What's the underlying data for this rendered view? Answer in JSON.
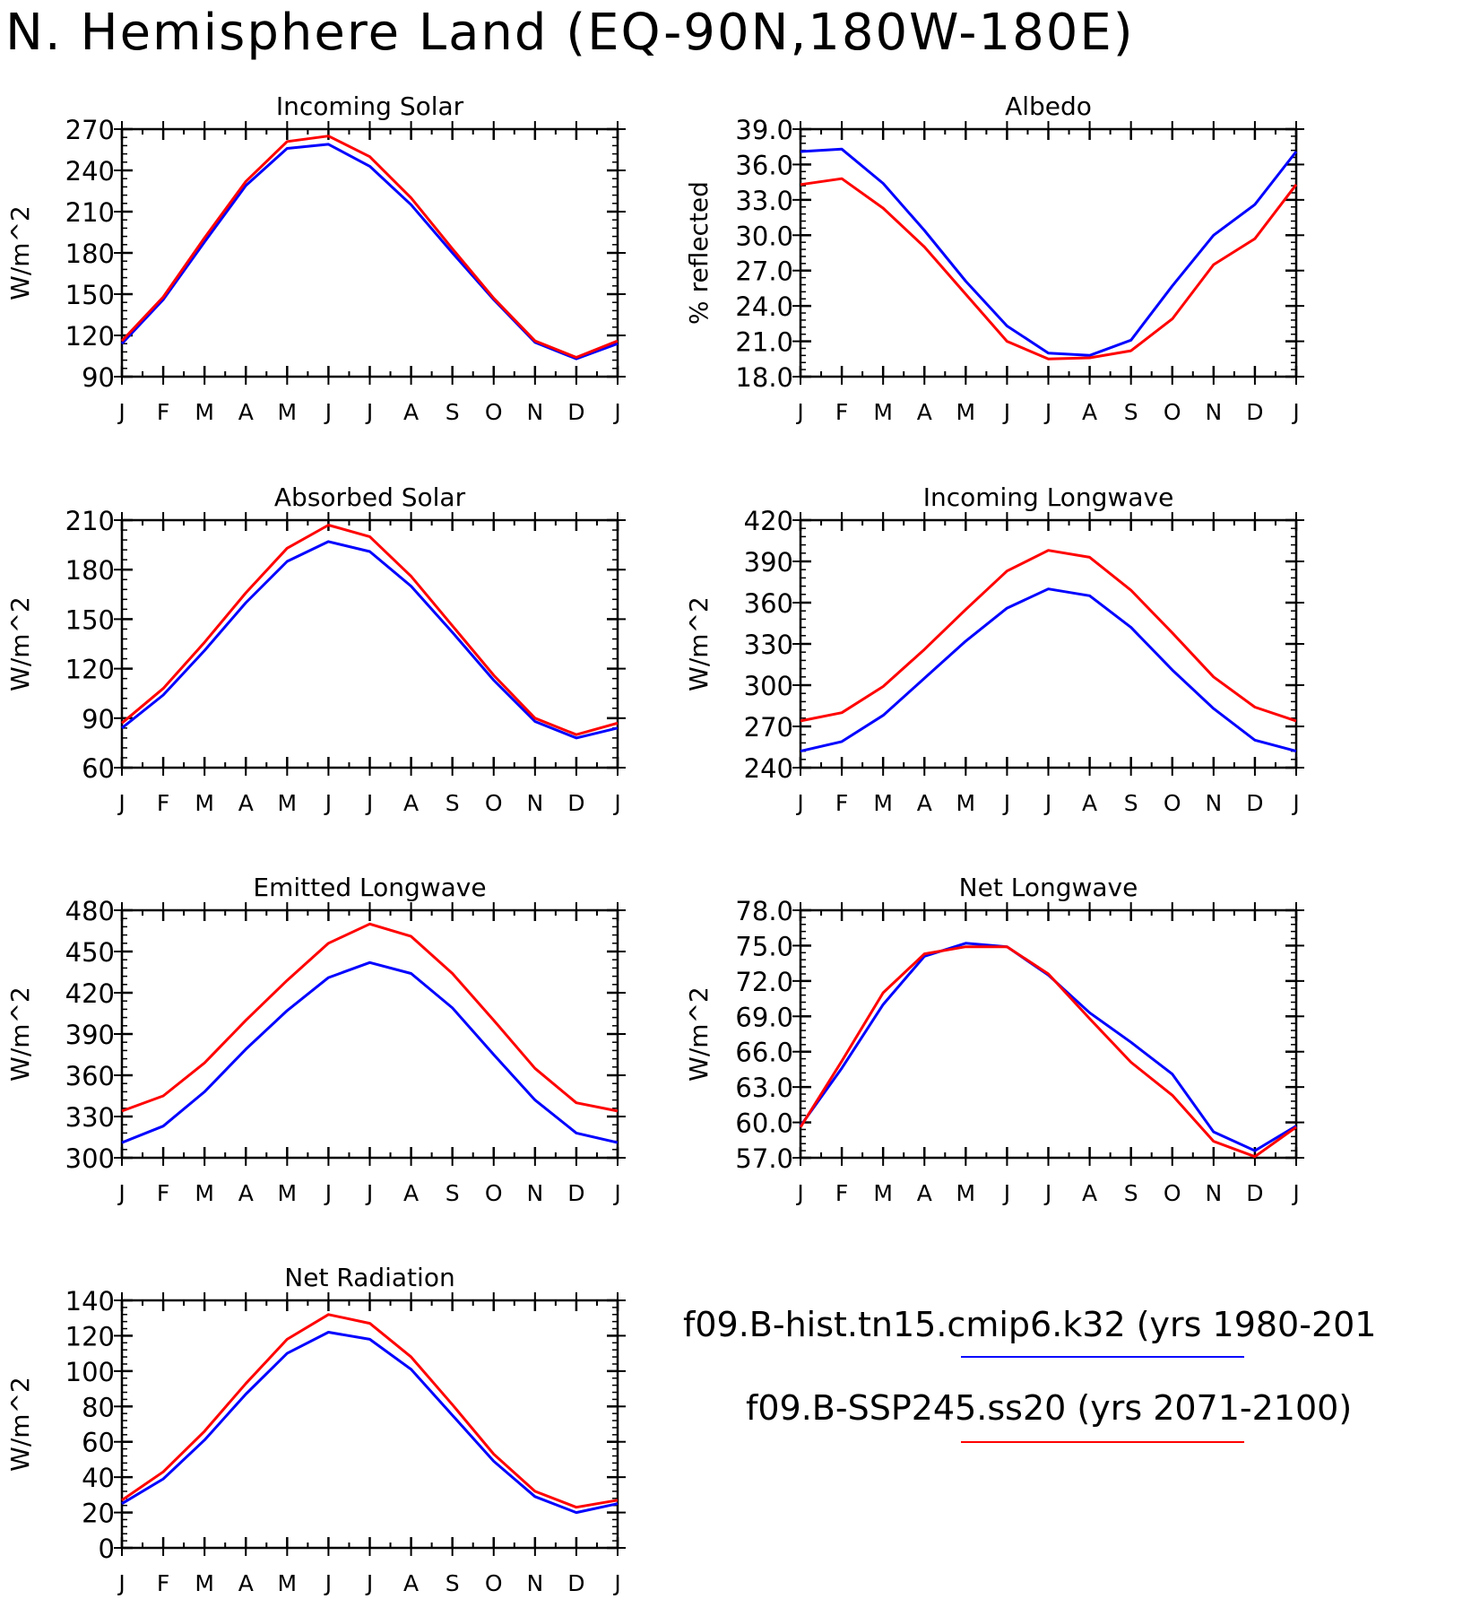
{
  "page_title": "N. Hemisphere Land (EQ-90N,180W-180E)",
  "series_colors": {
    "hist": "#0000ff",
    "ssp": "#ff0000"
  },
  "legend": {
    "hist_label": "f09.B-hist.tn15.cmip6.k32 (yrs 1980-201",
    "ssp_label": "f09.B-SSP245.ss20 (yrs 2071-2100)"
  },
  "chart_data": [
    {
      "type": "line",
      "title": "Incoming Solar",
      "ylabel": "W/m^2",
      "xlabel": "",
      "categories": [
        "J",
        "F",
        "M",
        "A",
        "M",
        "J",
        "J",
        "A",
        "S",
        "O",
        "N",
        "D",
        "J"
      ],
      "ylim": [
        90,
        270
      ],
      "yticks": [
        "90",
        "120",
        "150",
        "180",
        "210",
        "240",
        "270"
      ],
      "series": [
        {
          "key": "hist",
          "color": "#0000ff",
          "values": [
            114,
            146,
            188,
            229,
            256,
            259,
            243,
            215,
            180,
            146,
            115,
            103,
            114
          ]
        },
        {
          "key": "ssp",
          "color": "#ff0000",
          "values": [
            116,
            148,
            191,
            232,
            261,
            265,
            250,
            220,
            183,
            147,
            116,
            104,
            116
          ]
        }
      ]
    },
    {
      "type": "line",
      "title": "Albedo",
      "ylabel": "% reflected",
      "xlabel": "",
      "categories": [
        "J",
        "F",
        "M",
        "A",
        "M",
        "J",
        "J",
        "A",
        "S",
        "O",
        "N",
        "D",
        "J"
      ],
      "ylim": [
        18.0,
        39.0
      ],
      "yticks": [
        "18.0",
        "21.0",
        "24.0",
        "27.0",
        "30.0",
        "33.0",
        "36.0",
        "39.0"
      ],
      "series": [
        {
          "key": "hist",
          "color": "#0000ff",
          "values": [
            37.1,
            37.3,
            34.4,
            30.4,
            26.1,
            22.3,
            20.0,
            19.8,
            21.1,
            25.7,
            30.0,
            32.6,
            37.1
          ]
        },
        {
          "key": "ssp",
          "color": "#ff0000",
          "values": [
            34.3,
            34.8,
            32.3,
            29.0,
            25.0,
            21.0,
            19.5,
            19.6,
            20.2,
            22.9,
            27.5,
            29.7,
            34.3
          ]
        }
      ]
    },
    {
      "type": "line",
      "title": "Absorbed Solar",
      "ylabel": "W/m^2",
      "xlabel": "",
      "categories": [
        "J",
        "F",
        "M",
        "A",
        "M",
        "J",
        "J",
        "A",
        "S",
        "O",
        "N",
        "D",
        "J"
      ],
      "ylim": [
        60,
        210
      ],
      "yticks": [
        "60",
        "90",
        "120",
        "150",
        "180",
        "210"
      ],
      "series": [
        {
          "key": "hist",
          "color": "#0000ff",
          "values": [
            84,
            104,
            131,
            160,
            185,
            197,
            191,
            170,
            142,
            113,
            88,
            78,
            84
          ]
        },
        {
          "key": "ssp",
          "color": "#ff0000",
          "values": [
            87,
            108,
            136,
            166,
            193,
            207,
            200,
            176,
            146,
            116,
            90,
            80,
            87
          ]
        }
      ]
    },
    {
      "type": "line",
      "title": "Incoming Longwave",
      "ylabel": "W/m^2",
      "xlabel": "",
      "categories": [
        "J",
        "F",
        "M",
        "A",
        "M",
        "J",
        "J",
        "A",
        "S",
        "O",
        "N",
        "D",
        "J"
      ],
      "ylim": [
        240,
        420
      ],
      "yticks": [
        "240",
        "270",
        "300",
        "330",
        "360",
        "390",
        "420"
      ],
      "series": [
        {
          "key": "hist",
          "color": "#0000ff",
          "values": [
            252,
            259,
            278,
            305,
            332,
            356,
            370,
            365,
            342,
            311,
            283,
            260,
            252
          ]
        },
        {
          "key": "ssp",
          "color": "#ff0000",
          "values": [
            274,
            280,
            299,
            326,
            355,
            383,
            398,
            393,
            369,
            338,
            306,
            284,
            274
          ]
        }
      ]
    },
    {
      "type": "line",
      "title": "Emitted Longwave",
      "ylabel": "W/m^2",
      "xlabel": "",
      "categories": [
        "J",
        "F",
        "M",
        "A",
        "M",
        "J",
        "J",
        "A",
        "S",
        "O",
        "N",
        "D",
        "J"
      ],
      "ylim": [
        300,
        480
      ],
      "yticks": [
        "300",
        "330",
        "360",
        "390",
        "420",
        "450",
        "480"
      ],
      "series": [
        {
          "key": "hist",
          "color": "#0000ff",
          "values": [
            311,
            323,
            348,
            379,
            407,
            431,
            442,
            434,
            409,
            375,
            342,
            318,
            311
          ]
        },
        {
          "key": "ssp",
          "color": "#ff0000",
          "values": [
            334,
            345,
            369,
            400,
            429,
            456,
            470,
            461,
            434,
            400,
            365,
            340,
            334
          ]
        }
      ]
    },
    {
      "type": "line",
      "title": "Net Longwave",
      "ylabel": "W/m^2",
      "xlabel": "",
      "categories": [
        "J",
        "F",
        "M",
        "A",
        "M",
        "J",
        "J",
        "A",
        "S",
        "O",
        "N",
        "D",
        "J"
      ],
      "ylim": [
        57.0,
        78.0
      ],
      "yticks": [
        "57.0",
        "60.0",
        "63.0",
        "66.0",
        "69.0",
        "72.0",
        "75.0",
        "78.0"
      ],
      "series": [
        {
          "key": "hist",
          "color": "#0000ff",
          "values": [
            59.7,
            64.6,
            70.0,
            74.1,
            75.2,
            74.9,
            72.5,
            69.3,
            66.8,
            64.1,
            59.2,
            57.6,
            59.7
          ]
        },
        {
          "key": "ssp",
          "color": "#ff0000",
          "values": [
            59.6,
            65.2,
            71.0,
            74.3,
            74.9,
            74.9,
            72.6,
            68.8,
            65.1,
            62.3,
            58.4,
            57.1,
            59.6
          ]
        }
      ]
    },
    {
      "type": "line",
      "title": "Net Radiation",
      "ylabel": "W/m^2",
      "xlabel": "",
      "categories": [
        "J",
        "F",
        "M",
        "A",
        "M",
        "J",
        "J",
        "A",
        "S",
        "O",
        "N",
        "D",
        "J"
      ],
      "ylim": [
        0,
        140
      ],
      "yticks": [
        "0",
        "20",
        "40",
        "60",
        "80",
        "100",
        "120",
        "140"
      ],
      "series": [
        {
          "key": "hist",
          "color": "#0000ff",
          "values": [
            25,
            39,
            61,
            87,
            110,
            122,
            118,
            101,
            75,
            49,
            29,
            20,
            25
          ]
        },
        {
          "key": "ssp",
          "color": "#ff0000",
          "values": [
            27,
            43,
            66,
            93,
            118,
            132,
            127,
            108,
            81,
            53,
            32,
            23,
            27
          ]
        }
      ]
    }
  ]
}
